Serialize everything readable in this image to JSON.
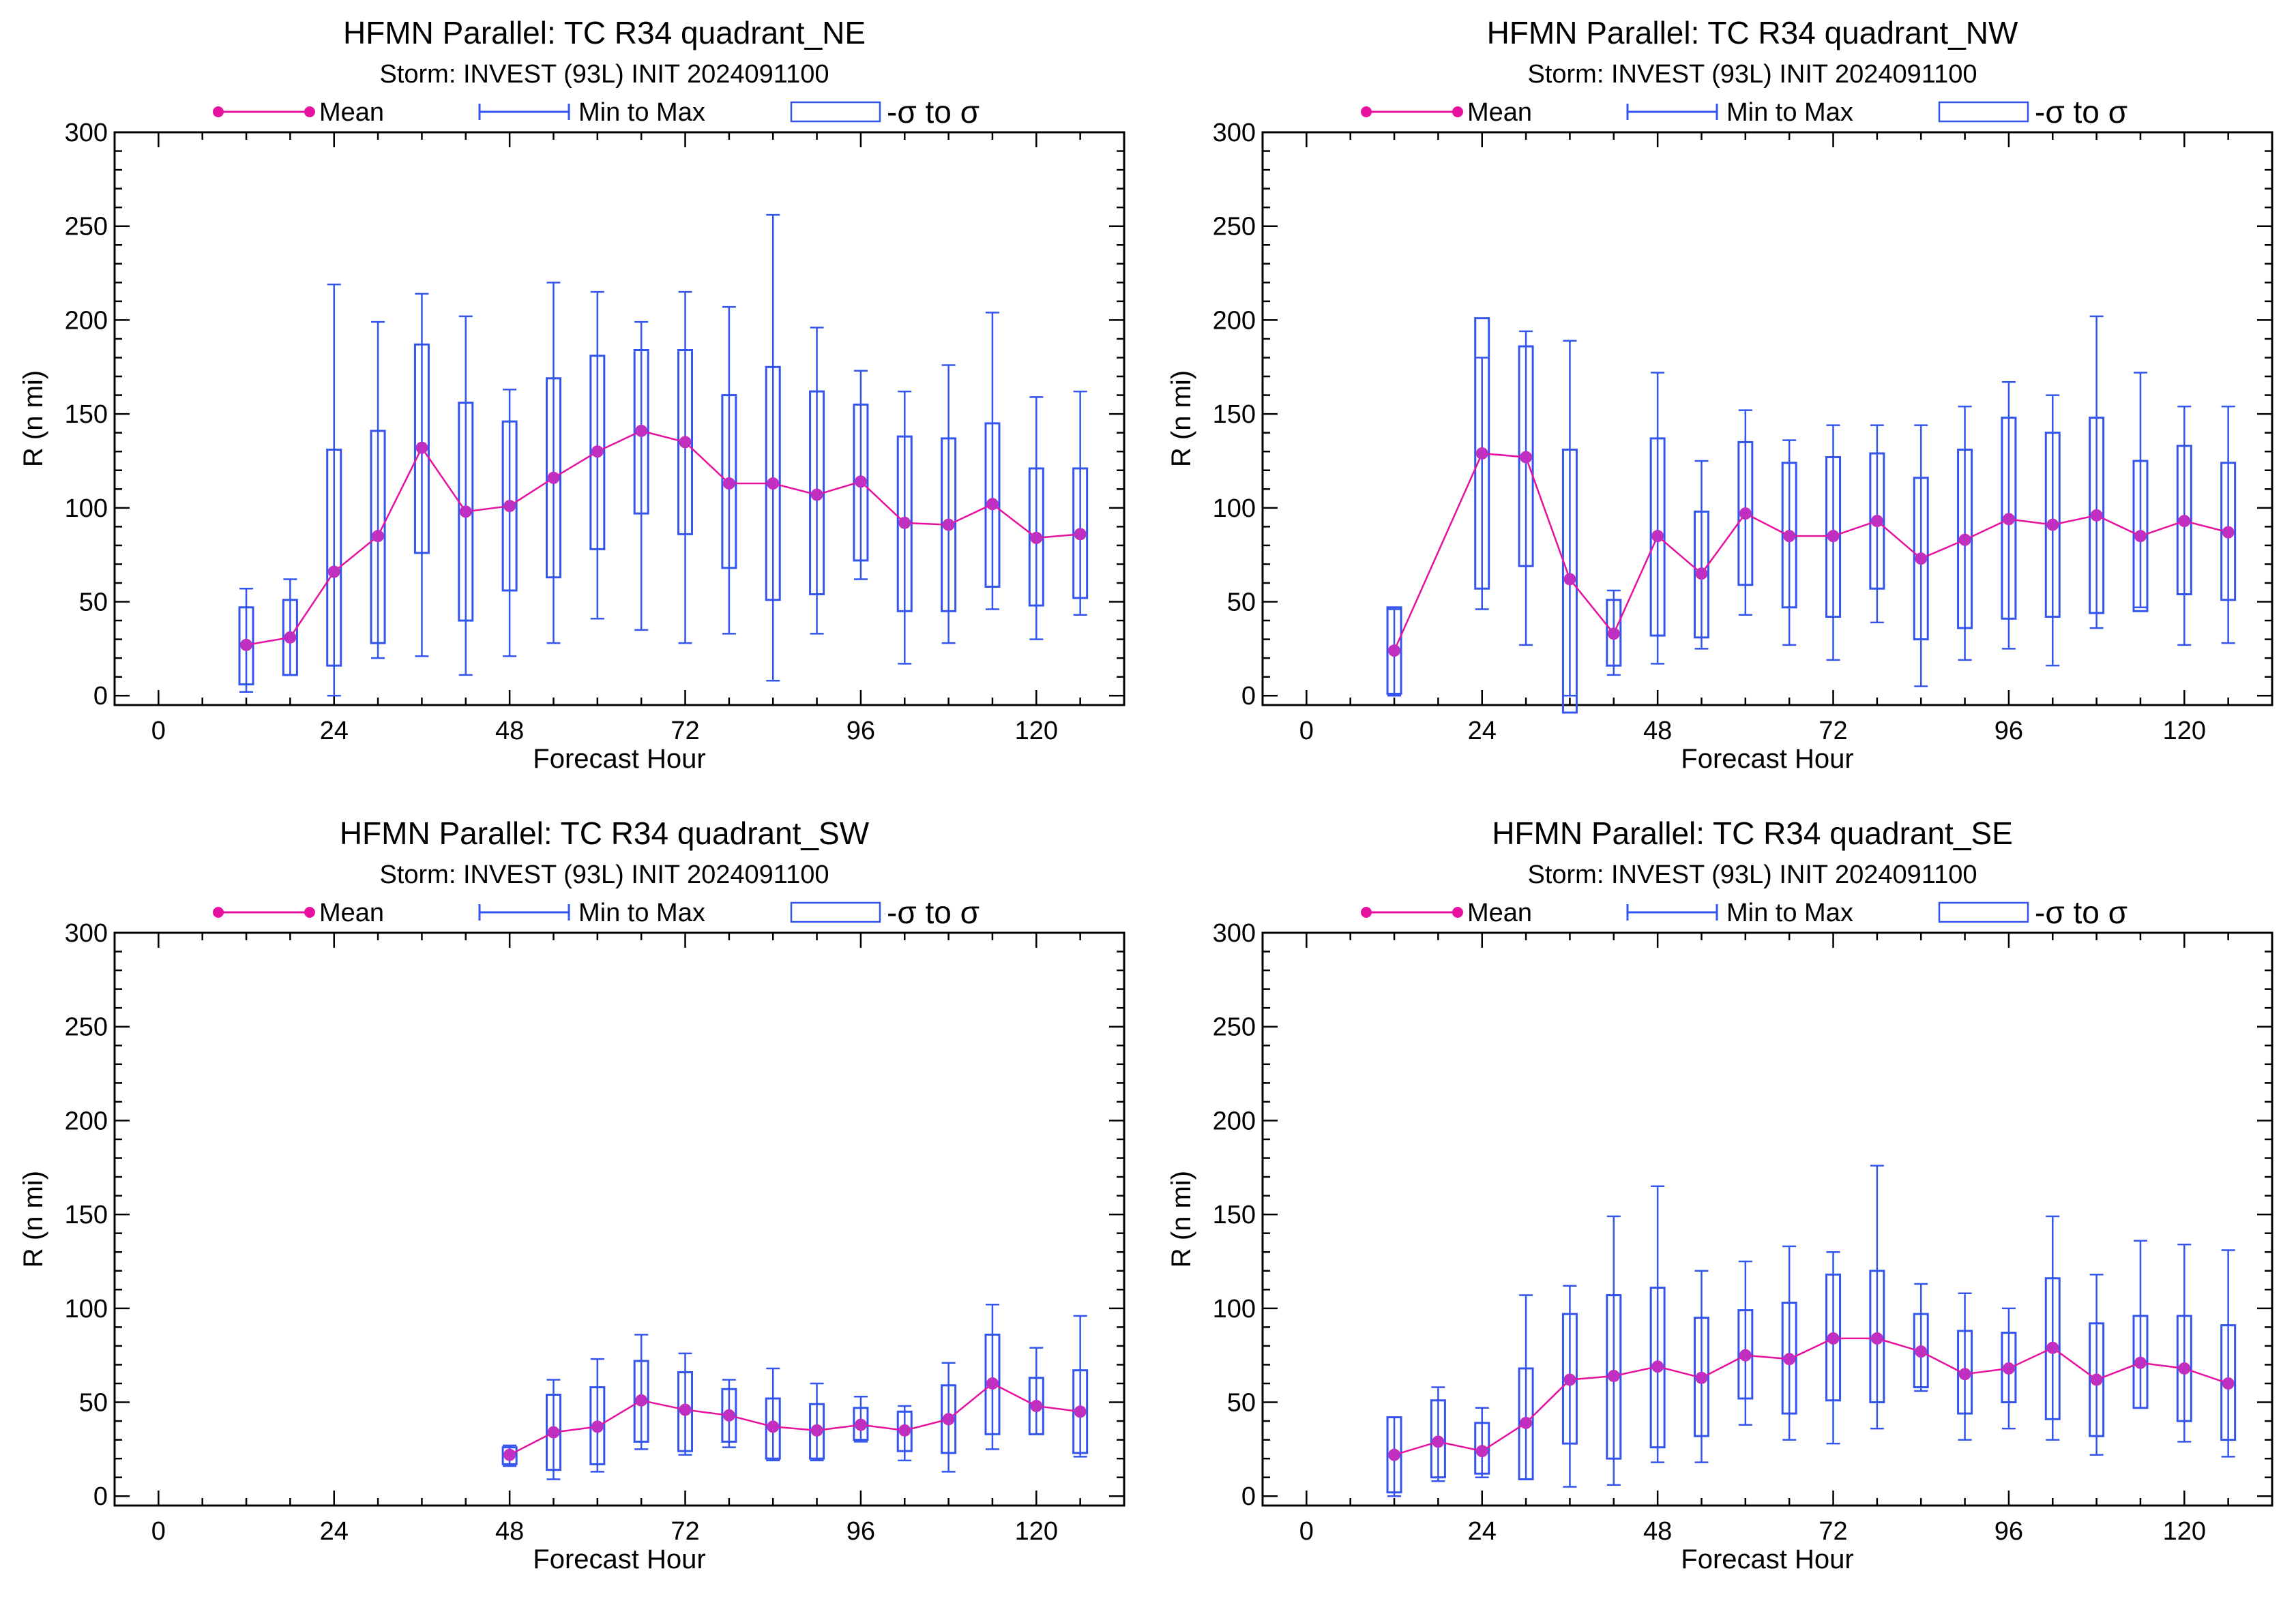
{
  "chart_data": [
    {
      "type": "box",
      "title": "HFMN Parallel: TC  R34 quadrant_NE",
      "subtitle": "Storm: INVEST (93L) INIT 2024091100",
      "xlabel": "Forecast Hour",
      "ylabel": "R (n mi)",
      "xlim": [
        -6,
        132
      ],
      "ylim": [
        -5,
        300
      ],
      "xticks": [
        0,
        24,
        48,
        72,
        96,
        120
      ],
      "yticks": [
        0,
        50,
        100,
        150,
        200,
        250,
        300
      ],
      "legend": {
        "mean": "Mean",
        "range": "Min to Max",
        "sigma": "-σ to σ"
      },
      "x": [
        12,
        18,
        24,
        30,
        36,
        42,
        48,
        54,
        60,
        66,
        72,
        78,
        84,
        90,
        96,
        102,
        108,
        114,
        120,
        126
      ],
      "mean": [
        27,
        31,
        66,
        85,
        132,
        98,
        101,
        116,
        130,
        141,
        135,
        113,
        113,
        107,
        114,
        92,
        91,
        102,
        84,
        86
      ],
      "min": [
        2,
        11,
        0,
        20,
        21,
        11,
        21,
        28,
        41,
        35,
        28,
        33,
        8,
        33,
        62,
        17,
        28,
        46,
        30,
        43
      ],
      "max": [
        57,
        62,
        219,
        199,
        214,
        202,
        163,
        220,
        215,
        199,
        215,
        207,
        256,
        196,
        173,
        162,
        176,
        204,
        159,
        162
      ],
      "sigma_low": [
        6,
        11,
        16,
        28,
        76,
        40,
        56,
        63,
        78,
        97,
        86,
        68,
        51,
        54,
        72,
        45,
        45,
        58,
        48,
        52
      ],
      "sigma_high": [
        47,
        51,
        131,
        141,
        187,
        156,
        146,
        169,
        181,
        184,
        184,
        160,
        175,
        162,
        155,
        138,
        137,
        145,
        121,
        121
      ]
    },
    {
      "type": "box",
      "title": "HFMN Parallel: TC  R34 quadrant_NW",
      "subtitle": "Storm: INVEST (93L) INIT 2024091100",
      "xlabel": "Forecast Hour",
      "ylabel": "R (n mi)",
      "xlim": [
        -6,
        132
      ],
      "ylim": [
        -5,
        300
      ],
      "xticks": [
        0,
        24,
        48,
        72,
        96,
        120
      ],
      "yticks": [
        0,
        50,
        100,
        150,
        200,
        250,
        300
      ],
      "legend": {
        "mean": "Mean",
        "range": "Min to Max",
        "sigma": "-σ to σ"
      },
      "x": [
        12,
        24,
        30,
        36,
        42,
        48,
        54,
        60,
        66,
        72,
        78,
        84,
        90,
        96,
        102,
        108,
        114,
        120,
        126
      ],
      "mean": [
        24,
        129,
        127,
        62,
        33,
        85,
        65,
        97,
        85,
        85,
        93,
        73,
        83,
        94,
        91,
        96,
        85,
        93,
        87
      ],
      "min": [
        0,
        46,
        27,
        0,
        11,
        17,
        25,
        43,
        27,
        19,
        39,
        5,
        19,
        25,
        16,
        36,
        47,
        27,
        28
      ],
      "max": [
        46,
        180,
        194,
        189,
        56,
        172,
        125,
        152,
        136,
        144,
        144,
        144,
        154,
        167,
        160,
        202,
        172,
        154,
        154
      ],
      "sigma_low": [
        1,
        57,
        69,
        -9,
        16,
        32,
        31,
        59,
        47,
        42,
        57,
        30,
        36,
        41,
        42,
        44,
        45,
        54,
        51
      ],
      "sigma_high": [
        47,
        201,
        186,
        131,
        51,
        137,
        98,
        135,
        124,
        127,
        129,
        116,
        131,
        148,
        140,
        148,
        125,
        133,
        124
      ]
    },
    {
      "type": "box",
      "title": "HFMN Parallel: TC  R34 quadrant_SW",
      "subtitle": "Storm: INVEST (93L) INIT 2024091100",
      "xlabel": "Forecast Hour",
      "ylabel": "R (n mi)",
      "xlim": [
        -6,
        132
      ],
      "ylim": [
        -5,
        300
      ],
      "xticks": [
        0,
        24,
        48,
        72,
        96,
        120
      ],
      "yticks": [
        0,
        50,
        100,
        150,
        200,
        250,
        300
      ],
      "legend": {
        "mean": "Mean",
        "range": "Min to Max",
        "sigma": "-σ to σ"
      },
      "x": [
        48,
        54,
        60,
        66,
        72,
        78,
        84,
        90,
        96,
        102,
        108,
        114,
        120,
        126
      ],
      "mean": [
        22,
        34,
        37,
        51,
        46,
        43,
        37,
        35,
        38,
        35,
        41,
        60,
        48,
        45
      ],
      "min": [
        16,
        9,
        13,
        25,
        22,
        26,
        19,
        19,
        29,
        19,
        13,
        25,
        33,
        21
      ],
      "max": [
        27,
        62,
        73,
        86,
        76,
        62,
        68,
        60,
        53,
        48,
        71,
        102,
        79,
        96
      ],
      "sigma_low": [
        17,
        14,
        17,
        29,
        24,
        29,
        20,
        20,
        30,
        24,
        23,
        33,
        33,
        23
      ],
      "sigma_high": [
        26,
        54,
        58,
        72,
        66,
        57,
        52,
        49,
        47,
        45,
        59,
        86,
        63,
        67
      ]
    },
    {
      "type": "box",
      "title": "HFMN Parallel: TC  R34 quadrant_SE",
      "subtitle": "Storm: INVEST (93L) INIT 2024091100",
      "xlabel": "Forecast Hour",
      "ylabel": "R (n mi)",
      "xlim": [
        -6,
        132
      ],
      "ylim": [
        -5,
        300
      ],
      "xticks": [
        0,
        24,
        48,
        72,
        96,
        120
      ],
      "yticks": [
        0,
        50,
        100,
        150,
        200,
        250,
        300
      ],
      "legend": {
        "mean": "Mean",
        "range": "Min to Max",
        "sigma": "-σ to σ"
      },
      "x": [
        12,
        18,
        24,
        30,
        36,
        42,
        48,
        54,
        60,
        66,
        72,
        78,
        84,
        90,
        96,
        102,
        108,
        114,
        120,
        126
      ],
      "mean": [
        22,
        29,
        24,
        39,
        62,
        64,
        69,
        63,
        75,
        73,
        84,
        84,
        77,
        65,
        68,
        79,
        62,
        71,
        68,
        60
      ],
      "min": [
        0,
        8,
        10,
        9,
        5,
        6,
        18,
        18,
        38,
        30,
        28,
        36,
        56,
        30,
        36,
        30,
        22,
        47,
        29,
        21
      ],
      "max": [
        42,
        58,
        47,
        107,
        112,
        149,
        165,
        120,
        125,
        133,
        130,
        176,
        113,
        108,
        100,
        149,
        118,
        136,
        134,
        131
      ],
      "sigma_low": [
        2,
        10,
        12,
        9,
        28,
        20,
        26,
        32,
        52,
        44,
        51,
        50,
        58,
        44,
        50,
        41,
        32,
        47,
        40,
        30
      ],
      "sigma_high": [
        42,
        51,
        39,
        68,
        97,
        107,
        111,
        95,
        99,
        103,
        118,
        120,
        97,
        88,
        87,
        116,
        92,
        96,
        96,
        91
      ]
    }
  ],
  "colors": {
    "mean": "#e6129f",
    "mean_marker": "#c02fc0",
    "range": "#3355ee",
    "box": "#3355ee"
  }
}
